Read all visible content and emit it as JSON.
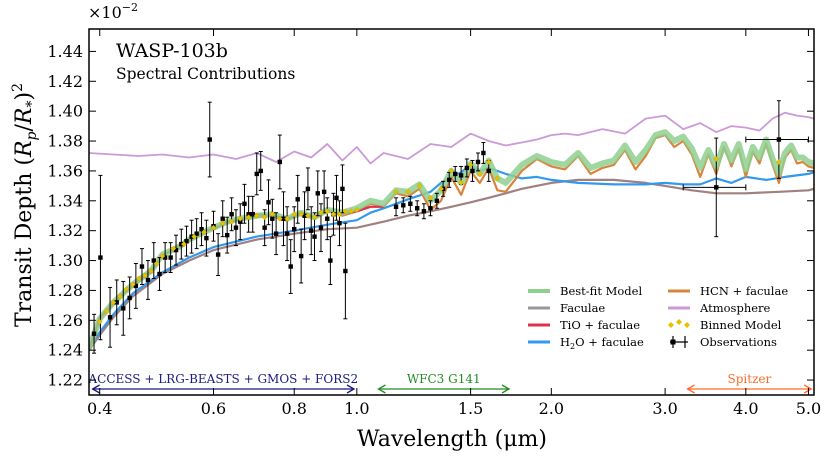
{
  "chart_data": {
    "type": "line",
    "title": "WASP-103b",
    "subtitle": "Spectral Contributions",
    "xlabel": "Wavelength (μm)",
    "ylabel_main": "Transit Depth (",
    "ylabel_r": "R",
    "ylabel_rsub": "p",
    "ylabel_slash": "/",
    "ylabel_star": "R",
    "ylabel_starsub": "*",
    "ylabel_close": ")",
    "ylabel_sup": "2",
    "y_multiplier": "×10",
    "y_multiplier_exp": "−2",
    "x_scale": "log",
    "xlim": [
      0.385,
      5.1
    ],
    "ylim": [
      1.21,
      1.455
    ],
    "x_ticks": [
      0.4,
      0.6,
      0.8,
      1.0,
      1.5,
      2.0,
      3.0,
      4.0,
      5.0
    ],
    "x_tick_labels": [
      "0.4",
      "0.6",
      "0.8",
      "1.0",
      "1.5",
      "2.0",
      "3.0",
      "4.0",
      "5.0"
    ],
    "y_ticks": [
      1.22,
      1.24,
      1.26,
      1.28,
      1.3,
      1.32,
      1.34,
      1.36,
      1.38,
      1.4,
      1.42,
      1.44
    ],
    "y_tick_labels": [
      "1.22",
      "1.24",
      "1.26",
      "1.28",
      "1.30",
      "1.32",
      "1.34",
      "1.36",
      "1.38",
      "1.40",
      "1.42",
      "1.44"
    ],
    "instrument_bands": [
      {
        "label": "ACCESS + LRG-BEASTS + GMOS + FORS2",
        "range": [
          0.39,
          0.99
        ],
        "color": "#1a1a80"
      },
      {
        "label": "WFC3 G141",
        "range": [
          1.08,
          1.72
        ],
        "color": "#228b22"
      },
      {
        "label": "Spitzer",
        "range": [
          3.25,
          5.05
        ],
        "color": "#ff6a2a"
      }
    ],
    "legend": {
      "position": "lower-right",
      "entries": [
        {
          "name": "Best-fit Model",
          "color": "#8fcf8f",
          "kind": "line"
        },
        {
          "name": "HCN + faculae",
          "color": "#d9843b",
          "kind": "line"
        },
        {
          "name": "Faculae",
          "color": "#999999",
          "kind": "line"
        },
        {
          "name": "Atmosphere",
          "color": "#cc99d9",
          "kind": "line"
        },
        {
          "name": "TiO + faculae",
          "color": "#e0304a",
          "kind": "line"
        },
        {
          "name": "Binned Model",
          "color": "#e6c200",
          "kind": "diamond"
        },
        {
          "name_pre": "H",
          "name_sub": "2",
          "name_post": "O + faculae",
          "color": "#3399ee",
          "kind": "line"
        },
        {
          "name": "Observations",
          "color": "#000000",
          "kind": "errorbar"
        }
      ]
    },
    "series": [
      {
        "name": "Atmosphere",
        "color": "#cc99d9",
        "x": [
          0.385,
          0.42,
          0.46,
          0.5,
          0.55,
          0.6,
          0.65,
          0.7,
          0.75,
          0.8,
          0.85,
          0.9,
          0.95,
          1.0,
          1.05,
          1.1,
          1.2,
          1.3,
          1.4,
          1.5,
          1.6,
          1.7,
          1.8,
          1.9,
          2.0,
          2.1,
          2.2,
          2.4,
          2.6,
          2.8,
          3.0,
          3.2,
          3.4,
          3.6,
          3.8,
          4.0,
          4.2,
          4.4,
          4.6,
          4.8,
          5.0,
          5.1
        ],
        "values": [
          1.372,
          1.371,
          1.37,
          1.371,
          1.369,
          1.371,
          1.368,
          1.372,
          1.366,
          1.373,
          1.369,
          1.378,
          1.367,
          1.376,
          1.365,
          1.372,
          1.368,
          1.378,
          1.376,
          1.385,
          1.38,
          1.377,
          1.379,
          1.381,
          1.384,
          1.385,
          1.384,
          1.388,
          1.385,
          1.395,
          1.397,
          1.388,
          1.392,
          1.386,
          1.39,
          1.389,
          1.387,
          1.395,
          1.399,
          1.397,
          1.396,
          1.395
        ]
      },
      {
        "name": "Faculae",
        "color": "#a08080",
        "x": [
          0.385,
          0.4,
          0.42,
          0.45,
          0.5,
          0.55,
          0.6,
          0.7,
          0.8,
          0.9,
          1.0,
          1.1,
          1.2,
          1.3,
          1.4,
          1.5,
          1.6,
          1.7,
          1.8,
          2.0,
          2.2,
          2.5,
          2.8,
          3.0,
          3.3,
          3.6,
          4.0,
          4.5,
          5.0,
          5.1
        ],
        "values": [
          1.24,
          1.25,
          1.262,
          1.276,
          1.291,
          1.3,
          1.307,
          1.314,
          1.318,
          1.321,
          1.322,
          1.326,
          1.33,
          1.333,
          1.336,
          1.339,
          1.342,
          1.345,
          1.348,
          1.352,
          1.354,
          1.354,
          1.352,
          1.35,
          1.347,
          1.345,
          1.345,
          1.346,
          1.347,
          1.348
        ]
      },
      {
        "name": "H2O + faculae",
        "color": "#3399ee",
        "x": [
          0.385,
          0.4,
          0.42,
          0.45,
          0.5,
          0.55,
          0.6,
          0.7,
          0.8,
          0.9,
          1.0,
          1.05,
          1.1,
          1.15,
          1.2,
          1.3,
          1.35,
          1.4,
          1.45,
          1.5,
          1.55,
          1.6,
          1.7,
          1.8,
          1.9,
          2.0,
          2.2,
          2.5,
          2.8,
          3.0,
          3.2,
          3.4,
          3.6,
          3.8,
          4.0,
          4.3,
          4.6,
          5.0,
          5.1
        ],
        "values": [
          1.242,
          1.252,
          1.264,
          1.278,
          1.292,
          1.302,
          1.309,
          1.316,
          1.32,
          1.324,
          1.327,
          1.332,
          1.335,
          1.338,
          1.341,
          1.346,
          1.352,
          1.356,
          1.359,
          1.364,
          1.36,
          1.362,
          1.358,
          1.355,
          1.356,
          1.354,
          1.352,
          1.351,
          1.351,
          1.352,
          1.351,
          1.351,
          1.355,
          1.352,
          1.356,
          1.354,
          1.356,
          1.358,
          1.359
        ]
      },
      {
        "name": "HCN + faculae",
        "color": "#d9843b",
        "x": [
          0.385,
          0.4,
          0.42,
          0.45,
          0.48,
          0.5,
          0.53,
          0.55,
          0.58,
          0.6,
          0.63,
          0.66,
          0.7,
          0.74,
          0.78,
          0.82,
          0.86,
          0.9,
          0.95,
          1.0,
          1.05,
          1.1,
          1.15,
          1.2,
          1.25,
          1.3,
          1.35,
          1.4,
          1.45,
          1.5,
          1.55,
          1.6,
          1.65,
          1.7,
          1.8,
          1.9,
          2.0,
          2.1,
          2.2,
          2.3,
          2.4,
          2.5,
          2.6,
          2.7,
          2.8,
          2.9,
          3.0,
          3.1,
          3.2,
          3.3,
          3.4,
          3.5,
          3.6,
          3.7,
          3.8,
          3.9,
          4.0,
          4.1,
          4.2,
          4.3,
          4.4,
          4.5,
          4.6,
          4.7,
          4.8,
          4.9,
          5.0,
          5.1
        ],
        "values": [
          1.24,
          1.26,
          1.272,
          1.283,
          1.292,
          1.304,
          1.308,
          1.314,
          1.318,
          1.322,
          1.325,
          1.328,
          1.329,
          1.33,
          1.327,
          1.332,
          1.328,
          1.334,
          1.33,
          1.333,
          1.338,
          1.336,
          1.345,
          1.343,
          1.348,
          1.334,
          1.34,
          1.356,
          1.344,
          1.36,
          1.352,
          1.362,
          1.347,
          1.346,
          1.36,
          1.368,
          1.363,
          1.361,
          1.37,
          1.358,
          1.362,
          1.364,
          1.374,
          1.361,
          1.37,
          1.382,
          1.384,
          1.376,
          1.38,
          1.371,
          1.356,
          1.371,
          1.358,
          1.376,
          1.363,
          1.375,
          1.356,
          1.373,
          1.365,
          1.378,
          1.364,
          1.352,
          1.369,
          1.374,
          1.365,
          1.366,
          1.363,
          1.362
        ]
      },
      {
        "name": "TiO + faculae",
        "color": "#e0304a",
        "x": [
          0.385,
          0.4,
          0.42,
          0.45,
          0.48,
          0.5,
          0.53,
          0.55,
          0.58,
          0.6,
          0.63,
          0.66,
          0.7,
          0.74,
          0.78,
          0.82,
          0.86,
          0.9,
          0.95,
          1.0,
          1.05,
          1.1
        ],
        "values": [
          1.241,
          1.262,
          1.271,
          1.284,
          1.293,
          1.303,
          1.31,
          1.313,
          1.32,
          1.321,
          1.326,
          1.327,
          1.331,
          1.33,
          1.328,
          1.331,
          1.329,
          1.333,
          1.331,
          1.333,
          1.336,
          1.336
        ]
      },
      {
        "name": "Best-fit Model",
        "color": "#8fcf8f",
        "x": [
          0.385,
          0.4,
          0.42,
          0.45,
          0.48,
          0.5,
          0.53,
          0.55,
          0.58,
          0.6,
          0.63,
          0.66,
          0.7,
          0.74,
          0.78,
          0.82,
          0.86,
          0.9,
          0.95,
          1.0,
          1.05,
          1.1,
          1.15,
          1.2,
          1.25,
          1.3,
          1.35,
          1.4,
          1.45,
          1.5,
          1.55,
          1.6,
          1.65,
          1.7,
          1.8,
          1.9,
          2.0,
          2.1,
          2.2,
          2.3,
          2.4,
          2.5,
          2.6,
          2.7,
          2.8,
          2.9,
          3.0,
          3.1,
          3.2,
          3.3,
          3.4,
          3.5,
          3.6,
          3.7,
          3.8,
          3.9,
          4.0,
          4.1,
          4.2,
          4.3,
          4.4,
          4.5,
          4.6,
          4.7,
          4.8,
          4.9,
          5.0,
          5.1
        ],
        "values": [
          1.241,
          1.261,
          1.272,
          1.284,
          1.293,
          1.304,
          1.309,
          1.314,
          1.319,
          1.322,
          1.326,
          1.328,
          1.33,
          1.331,
          1.328,
          1.332,
          1.329,
          1.334,
          1.332,
          1.335,
          1.34,
          1.338,
          1.347,
          1.346,
          1.351,
          1.34,
          1.347,
          1.36,
          1.352,
          1.365,
          1.358,
          1.367,
          1.355,
          1.352,
          1.364,
          1.37,
          1.366,
          1.364,
          1.372,
          1.362,
          1.365,
          1.367,
          1.377,
          1.366,
          1.374,
          1.384,
          1.386,
          1.38,
          1.383,
          1.375,
          1.362,
          1.374,
          1.363,
          1.378,
          1.367,
          1.378,
          1.361,
          1.376,
          1.369,
          1.381,
          1.368,
          1.358,
          1.372,
          1.377,
          1.369,
          1.369,
          1.366,
          1.365
        ]
      }
    ],
    "binned_model": {
      "x": [
        0.4,
        0.41,
        0.42,
        0.43,
        0.44,
        0.45,
        0.46,
        0.47,
        0.48,
        0.49,
        0.5,
        0.52,
        0.54,
        0.56,
        0.58,
        0.6,
        0.62,
        0.64,
        0.66,
        0.68,
        0.7,
        0.72,
        0.74,
        0.76,
        0.78,
        0.8,
        0.82,
        0.84,
        0.86,
        0.88,
        0.9,
        0.92,
        0.94,
        0.96,
        0.98,
        1.0,
        1.15,
        1.2,
        1.25,
        1.3,
        1.35,
        1.4,
        1.45,
        1.5,
        1.55,
        1.6,
        1.65,
        3.6,
        4.5
      ],
      "values": [
        1.259,
        1.266,
        1.272,
        1.276,
        1.281,
        1.284,
        1.288,
        1.29,
        1.293,
        1.298,
        1.303,
        1.308,
        1.311,
        1.316,
        1.319,
        1.322,
        1.325,
        1.326,
        1.328,
        1.329,
        1.33,
        1.329,
        1.331,
        1.328,
        1.328,
        1.331,
        1.331,
        1.33,
        1.329,
        1.332,
        1.333,
        1.331,
        1.331,
        1.333,
        1.333,
        1.334,
        1.346,
        1.346,
        1.35,
        1.342,
        1.348,
        1.36,
        1.352,
        1.364,
        1.358,
        1.366,
        1.355,
        1.368,
        1.366
      ]
    },
    "observations": [
      {
        "x": 0.392,
        "y": 1.251,
        "yerr": 0.013
      },
      {
        "x": 0.401,
        "y": 1.302,
        "yerr": 0.055
      },
      {
        "x": 0.415,
        "y": 1.262,
        "yerr": 0.02
      },
      {
        "x": 0.425,
        "y": 1.272,
        "yerr": 0.015
      },
      {
        "x": 0.435,
        "y": 1.268,
        "yerr": 0.018
      },
      {
        "x": 0.445,
        "y": 1.275,
        "yerr": 0.014
      },
      {
        "x": 0.455,
        "y": 1.283,
        "yerr": 0.015
      },
      {
        "x": 0.465,
        "y": 1.296,
        "yerr": 0.012
      },
      {
        "x": 0.475,
        "y": 1.287,
        "yerr": 0.013
      },
      {
        "x": 0.485,
        "y": 1.3,
        "yerr": 0.012
      },
      {
        "x": 0.495,
        "y": 1.291,
        "yerr": 0.011
      },
      {
        "x": 0.505,
        "y": 1.302,
        "yerr": 0.01
      },
      {
        "x": 0.515,
        "y": 1.302,
        "yerr": 0.01
      },
      {
        "x": 0.525,
        "y": 1.307,
        "yerr": 0.01
      },
      {
        "x": 0.535,
        "y": 1.311,
        "yerr": 0.01
      },
      {
        "x": 0.545,
        "y": 1.313,
        "yerr": 0.01
      },
      {
        "x": 0.555,
        "y": 1.316,
        "yerr": 0.011
      },
      {
        "x": 0.565,
        "y": 1.318,
        "yerr": 0.01
      },
      {
        "x": 0.575,
        "y": 1.321,
        "yerr": 0.011
      },
      {
        "x": 0.585,
        "y": 1.315,
        "yerr": 0.012
      },
      {
        "x": 0.592,
        "y": 1.381,
        "yerr": 0.025
      },
      {
        "x": 0.6,
        "y": 1.323,
        "yerr": 0.01
      },
      {
        "x": 0.61,
        "y": 1.304,
        "yerr": 0.014
      },
      {
        "x": 0.62,
        "y": 1.328,
        "yerr": 0.012
      },
      {
        "x": 0.63,
        "y": 1.317,
        "yerr": 0.012
      },
      {
        "x": 0.64,
        "y": 1.331,
        "yerr": 0.011
      },
      {
        "x": 0.65,
        "y": 1.322,
        "yerr": 0.012
      },
      {
        "x": 0.66,
        "y": 1.326,
        "yerr": 0.012
      },
      {
        "x": 0.67,
        "y": 1.338,
        "yerr": 0.013
      },
      {
        "x": 0.68,
        "y": 1.331,
        "yerr": 0.012
      },
      {
        "x": 0.69,
        "y": 1.331,
        "yerr": 0.012
      },
      {
        "x": 0.7,
        "y": 1.358,
        "yerr": 0.014
      },
      {
        "x": 0.71,
        "y": 1.36,
        "yerr": 0.013
      },
      {
        "x": 0.72,
        "y": 1.322,
        "yerr": 0.012
      },
      {
        "x": 0.73,
        "y": 1.339,
        "yerr": 0.015
      },
      {
        "x": 0.74,
        "y": 1.328,
        "yerr": 0.013
      },
      {
        "x": 0.75,
        "y": 1.318,
        "yerr": 0.014
      },
      {
        "x": 0.76,
        "y": 1.366,
        "yerr": 0.018
      },
      {
        "x": 0.77,
        "y": 1.328,
        "yerr": 0.018
      },
      {
        "x": 0.78,
        "y": 1.318,
        "yerr": 0.018
      },
      {
        "x": 0.79,
        "y": 1.296,
        "yerr": 0.018
      },
      {
        "x": 0.8,
        "y": 1.321,
        "yerr": 0.015
      },
      {
        "x": 0.81,
        "y": 1.341,
        "yerr": 0.016
      },
      {
        "x": 0.82,
        "y": 1.303,
        "yerr": 0.018
      },
      {
        "x": 0.83,
        "y": 1.33,
        "yerr": 0.016
      },
      {
        "x": 0.84,
        "y": 1.348,
        "yerr": 0.014
      },
      {
        "x": 0.85,
        "y": 1.32,
        "yerr": 0.016
      },
      {
        "x": 0.86,
        "y": 1.316,
        "yerr": 0.016
      },
      {
        "x": 0.87,
        "y": 1.345,
        "yerr": 0.015
      },
      {
        "x": 0.88,
        "y": 1.322,
        "yerr": 0.016
      },
      {
        "x": 0.89,
        "y": 1.346,
        "yerr": 0.014
      },
      {
        "x": 0.9,
        "y": 1.328,
        "yerr": 0.014
      },
      {
        "x": 0.91,
        "y": 1.3,
        "yerr": 0.016
      },
      {
        "x": 0.92,
        "y": 1.331,
        "yerr": 0.014
      },
      {
        "x": 0.93,
        "y": 1.342,
        "yerr": 0.015
      },
      {
        "x": 0.94,
        "y": 1.325,
        "yerr": 0.015
      },
      {
        "x": 0.95,
        "y": 1.348,
        "yerr": 0.016
      },
      {
        "x": 0.96,
        "y": 1.293,
        "yerr": 0.032
      },
      {
        "x": 1.15,
        "y": 1.336,
        "yerr": 0.006
      },
      {
        "x": 1.18,
        "y": 1.337,
        "yerr": 0.005
      },
      {
        "x": 1.21,
        "y": 1.338,
        "yerr": 0.005
      },
      {
        "x": 1.24,
        "y": 1.335,
        "yerr": 0.005
      },
      {
        "x": 1.27,
        "y": 1.333,
        "yerr": 0.005
      },
      {
        "x": 1.3,
        "y": 1.335,
        "yerr": 0.005
      },
      {
        "x": 1.33,
        "y": 1.34,
        "yerr": 0.005
      },
      {
        "x": 1.36,
        "y": 1.348,
        "yerr": 0.005
      },
      {
        "x": 1.39,
        "y": 1.354,
        "yerr": 0.005
      },
      {
        "x": 1.42,
        "y": 1.358,
        "yerr": 0.005
      },
      {
        "x": 1.45,
        "y": 1.357,
        "yerr": 0.006
      },
      {
        "x": 1.48,
        "y": 1.362,
        "yerr": 0.006
      },
      {
        "x": 1.51,
        "y": 1.36,
        "yerr": 0.007
      },
      {
        "x": 1.54,
        "y": 1.366,
        "yerr": 0.006
      },
      {
        "x": 1.57,
        "y": 1.372,
        "yerr": 0.007
      },
      {
        "x": 1.6,
        "y": 1.36,
        "yerr": 0.007
      },
      {
        "x": 3.6,
        "y": 1.349,
        "yerr": 0.033,
        "xerr": [
          3.2,
          4.0
        ]
      },
      {
        "x": 4.5,
        "y": 1.381,
        "yerr": 0.026,
        "xerr": [
          4.0,
          5.0
        ]
      }
    ]
  }
}
